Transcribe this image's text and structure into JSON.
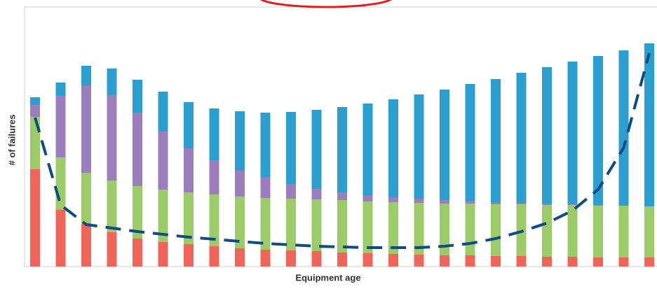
{
  "chart_data": {
    "type": "stacked_bar",
    "x_label": "Equipment age",
    "y_label": "# of failures",
    "categories": [
      null,
      null,
      null,
      null,
      null,
      null,
      null,
      null,
      null,
      null,
      null,
      null,
      null,
      null,
      null,
      null,
      null,
      null,
      null,
      null,
      null,
      null,
      null,
      null,
      null
    ],
    "ylim": [
      0,
      371
    ],
    "series": [
      {
        "color": "#f0645a",
        "values": [
          139,
          81,
          61,
          49,
          40,
          35,
          32,
          29,
          26,
          24,
          23,
          22,
          20,
          19,
          18,
          17,
          16,
          16,
          15,
          15,
          14,
          14,
          13,
          13,
          13
        ]
      },
      {
        "color": "#9ccc6a",
        "values": [
          75,
          75,
          73,
          74,
          75,
          75,
          74,
          74,
          74,
          74,
          74,
          74,
          75,
          74,
          74,
          74,
          74,
          74,
          74,
          74,
          74,
          74,
          74,
          74,
          73
        ]
      },
      {
        "color": "#9b7fbd",
        "values": [
          17,
          88,
          125,
          122,
          105,
          83,
          63,
          49,
          37,
          29,
          21,
          15,
          11,
          9,
          7,
          6,
          5,
          4,
          3,
          2,
          2,
          1,
          1,
          0,
          0
        ]
      },
      {
        "color": "#2a9fd0",
        "values": [
          11,
          19,
          28,
          38,
          47,
          57,
          66,
          74,
          85,
          93,
          103,
          113,
          122,
          131,
          140,
          149,
          158,
          167,
          176,
          186,
          195,
          204,
          213,
          222,
          233
        ]
      }
    ],
    "line": {
      "color": "#0f4c81",
      "dashed": true,
      "values": [
        213,
        88,
        60,
        55,
        50,
        46,
        42,
        39,
        36,
        33,
        31,
        29,
        28,
        27,
        27,
        27,
        29,
        33,
        40,
        50,
        62,
        80,
        110,
        170,
        305
      ]
    }
  }
}
